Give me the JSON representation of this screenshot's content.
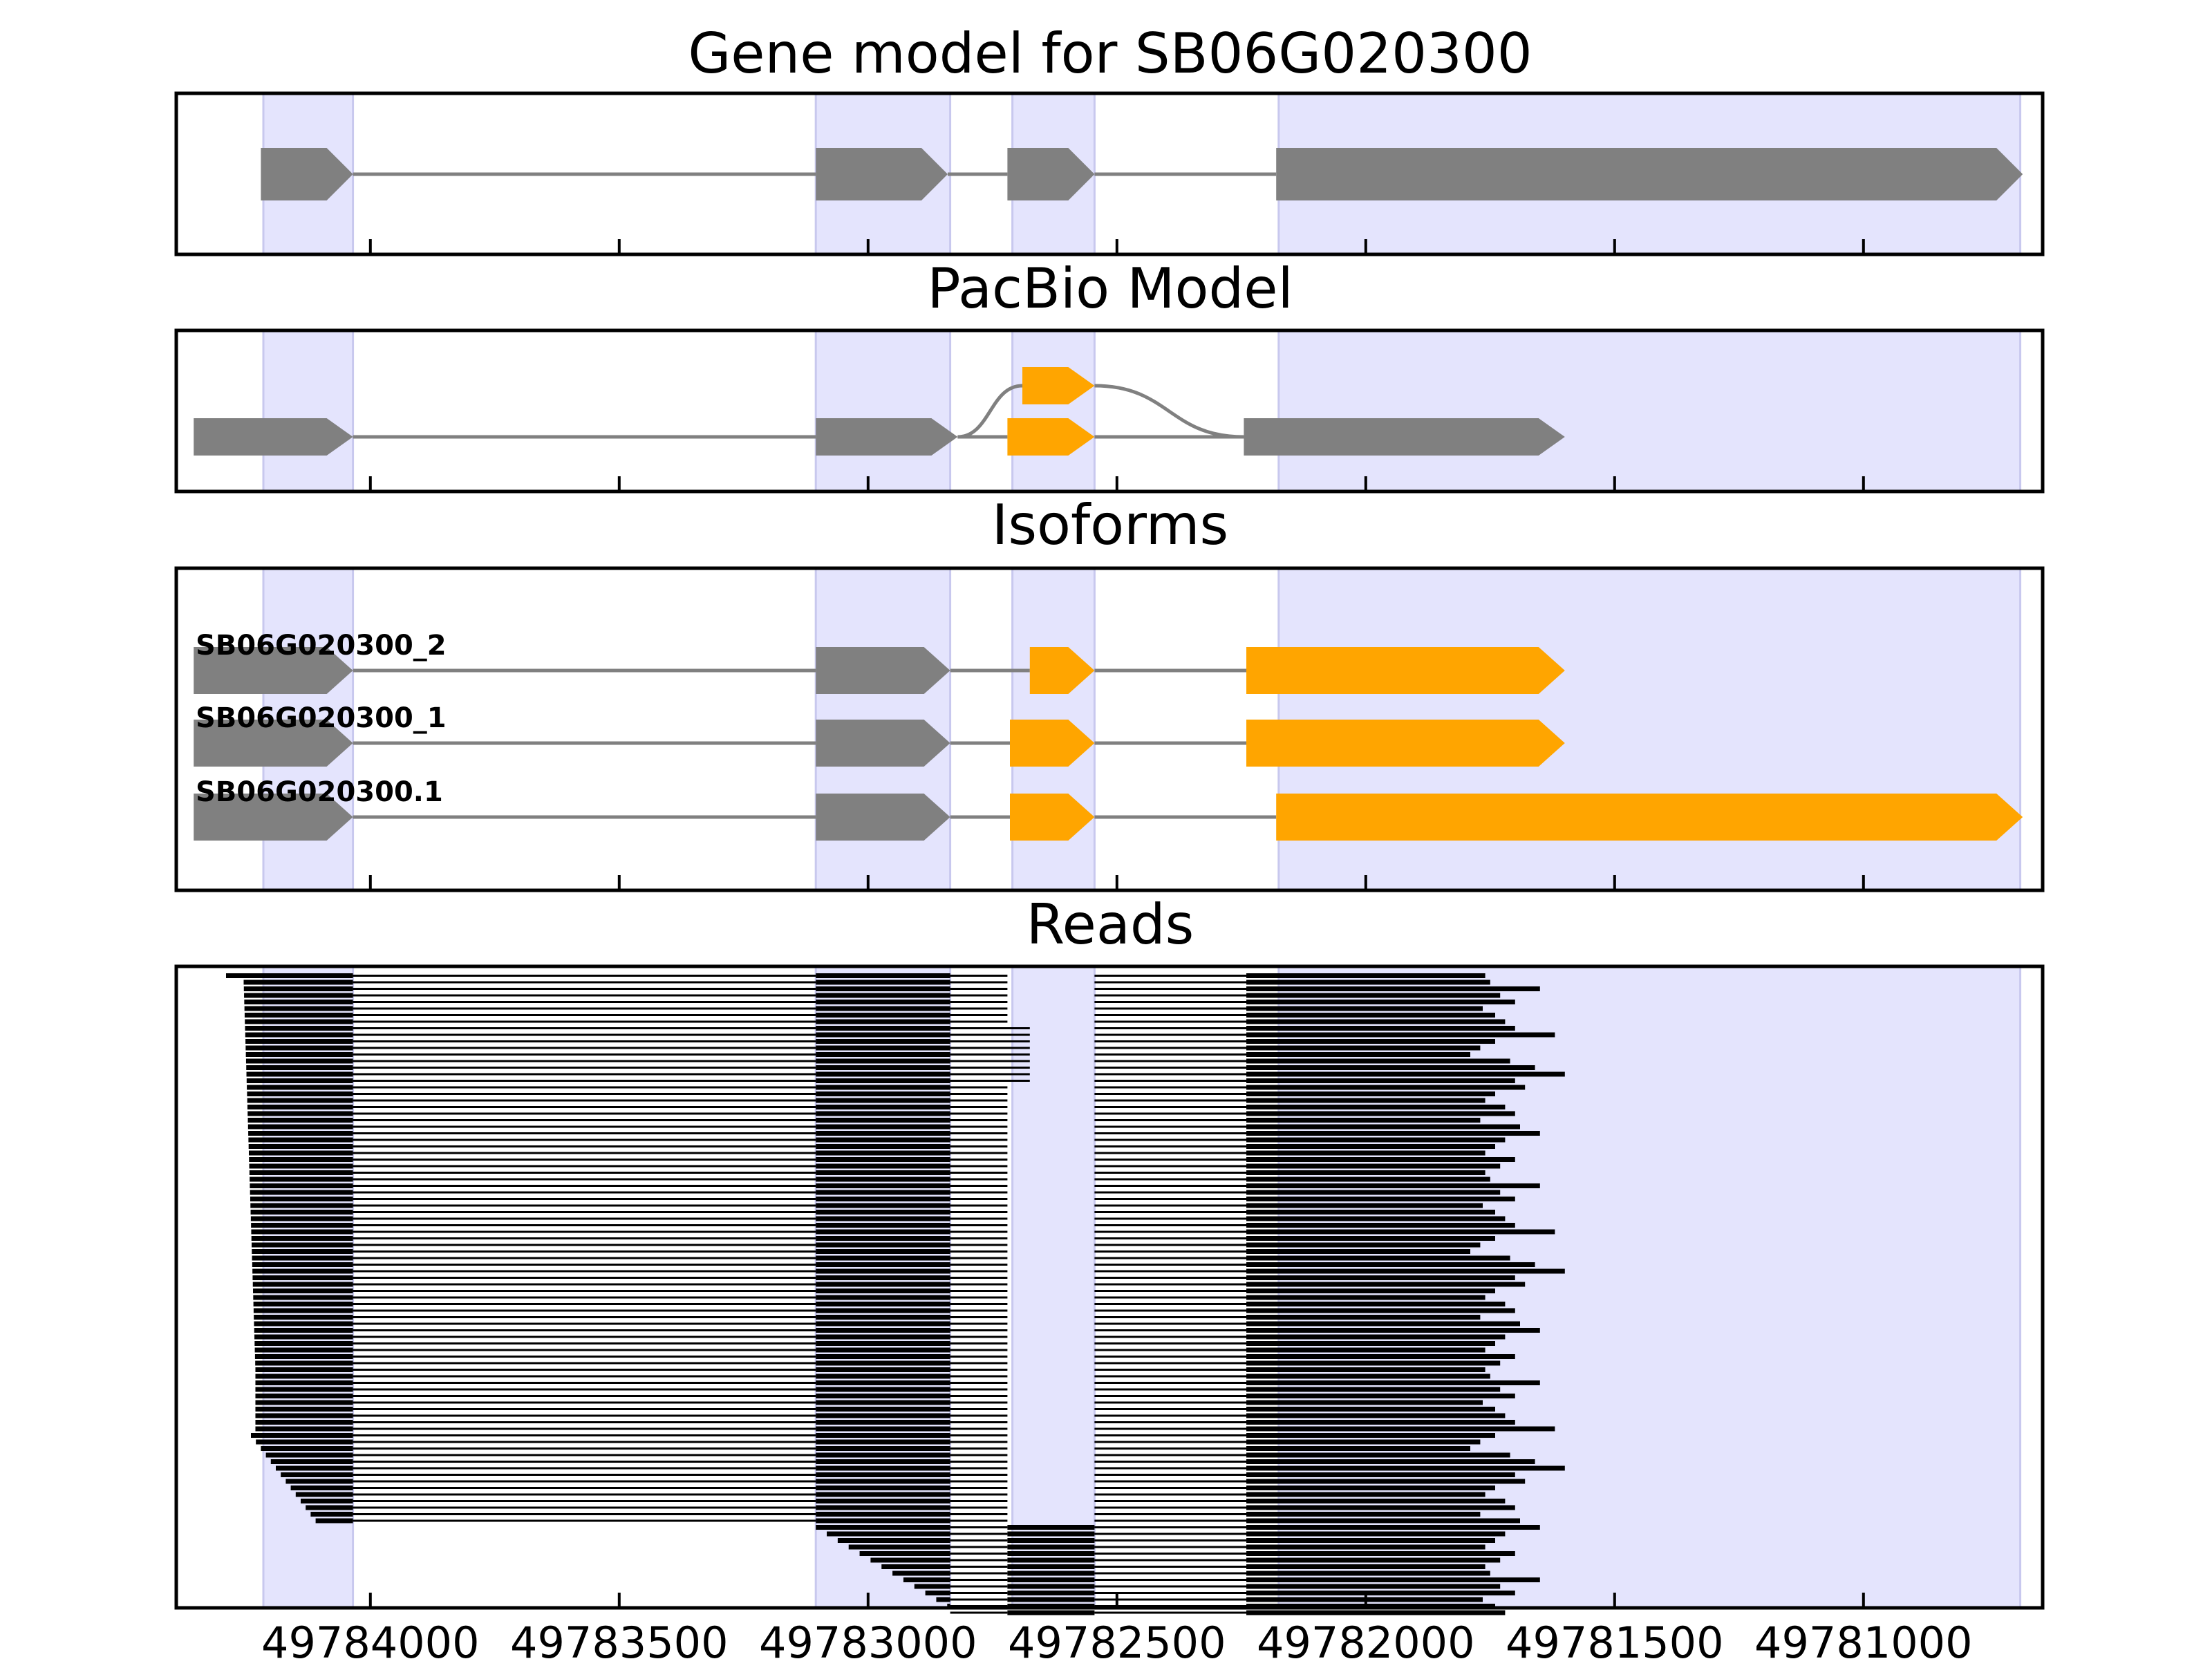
{
  "figure": {
    "titles": {
      "gene_model": "Gene model for SB06G020300",
      "pacbio": "PacBio Model",
      "isoforms": "Isoforms",
      "reads": "Reads"
    },
    "x_ticks": [
      {
        "value": 49784000,
        "label": "49784000"
      },
      {
        "value": 49783500,
        "label": "49783500"
      },
      {
        "value": 49783000,
        "label": "49783000"
      },
      {
        "value": 49782500,
        "label": "49782500"
      },
      {
        "value": 49782000,
        "label": "49782000"
      },
      {
        "value": 49781500,
        "label": "49781500"
      },
      {
        "value": 49781000,
        "label": "49781000"
      }
    ],
    "x_range": [
      49784390,
      49780640
    ],
    "colors": {
      "exon_gray": "#808080",
      "exon_orange": "#ffa500",
      "intron": "#808080",
      "highlight": "#e4e4fd",
      "highlight_edge": "#c8c8ee",
      "read": "#000000"
    },
    "highlight_exons": [
      [
        49784215,
        49784035
      ],
      [
        49783105,
        49782835
      ],
      [
        49782710,
        49782545
      ],
      [
        49782175,
        49780685
      ]
    ],
    "gene_model": {
      "exons": [
        [
          49784220,
          49784035
        ],
        [
          49783105,
          49782840
        ],
        [
          49782720,
          49782545
        ],
        [
          49782180,
          49780680
        ]
      ]
    },
    "pacbio_model": {
      "exons": [
        [
          49784355,
          49784035,
          "gray",
          0
        ],
        [
          49783105,
          49782820,
          "gray",
          0
        ],
        [
          49782690,
          49782545,
          "orange",
          1
        ],
        [
          49782720,
          49782545,
          "orange",
          0
        ],
        [
          49782245,
          49781600,
          "gray",
          0
        ]
      ],
      "introns": [
        [
          49784035,
          49783105,
          0,
          0
        ],
        [
          49782820,
          49782690,
          0,
          1
        ],
        [
          49782545,
          49782245,
          1,
          0
        ],
        [
          49782820,
          49782720,
          0,
          0
        ],
        [
          49782545,
          49782245,
          0,
          0
        ]
      ]
    },
    "isoforms": [
      {
        "name": "SB06G020300_2",
        "exons": [
          [
            49784355,
            49784035,
            "gray"
          ],
          [
            49783105,
            49782835,
            "gray"
          ],
          [
            49782675,
            49782545,
            "orange"
          ],
          [
            49782240,
            49781600,
            "orange"
          ]
        ]
      },
      {
        "name": "SB06G020300_1",
        "exons": [
          [
            49784355,
            49784035,
            "gray"
          ],
          [
            49783105,
            49782835,
            "gray"
          ],
          [
            49782715,
            49782545,
            "orange"
          ],
          [
            49782240,
            49781600,
            "orange"
          ]
        ]
      },
      {
        "name": "SB06G020300.1",
        "exons": [
          [
            49784355,
            49784035,
            "gray"
          ],
          [
            49783105,
            49782835,
            "gray"
          ],
          [
            49782715,
            49782545,
            "orange"
          ],
          [
            49782180,
            49780680,
            "orange"
          ]
        ]
      }
    ]
  },
  "chart_data": {
    "type": "diagram",
    "title": "Gene model for SB06G020300",
    "xlim": [
      49784390,
      49780640
    ],
    "reads": {
      "count": 98,
      "intron_connected_rows": 84,
      "exon_blocks": [
        [
          49784035,
          49783105
        ],
        [
          49782835,
          49782720
        ],
        [
          49782545,
          49782240
        ]
      ],
      "read_end_values": [
        49781760,
        49781750,
        49781650,
        49781730,
        49781700,
        49781765,
        49781740,
        49781720,
        49781700,
        49781620,
        49781740,
        49781770,
        49781790,
        49781710,
        49781660,
        49781600,
        49781700,
        49781680,
        49781740,
        49781760,
        49781720,
        49781700,
        49781770,
        49781690,
        49781650,
        49781720,
        49781740,
        49781760,
        49781700,
        49781730
      ]
    }
  }
}
